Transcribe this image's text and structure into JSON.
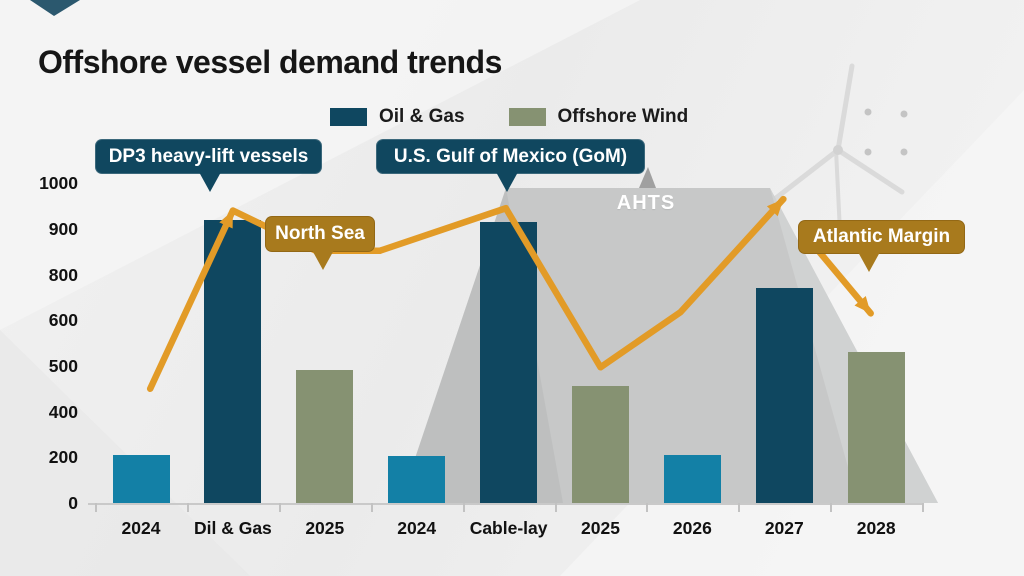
{
  "slide": {
    "title": "Offshore vessel demand trends"
  },
  "palette": {
    "navy": "#0f4760",
    "teal": "#1380a6",
    "olive": "#869272",
    "gold": "#a87a1d",
    "orange": "#e29b27"
  },
  "legend": {
    "items": [
      {
        "label": "Oil & Gas",
        "color": "navy"
      },
      {
        "label": "Offshore Wind",
        "color": "olive"
      }
    ]
  },
  "callouts": {
    "dp3": {
      "label": "DP3 heavy-lift vessels",
      "style": "navy"
    },
    "gom": {
      "label": "U.S. Gulf of Mexico (GoM)",
      "style": "navy"
    },
    "north_sea": {
      "label": "North Sea",
      "style": "gold"
    },
    "atlantic_margin": {
      "label": "Atlantic Margin",
      "style": "gold"
    }
  },
  "annotations": {
    "ahts_label": "AHTS"
  },
  "chart_data": {
    "type": "bar",
    "title": "Offshore vessel demand trends",
    "xlabel": "",
    "ylabel": "",
    "grid": false,
    "legend_position": "top",
    "y_ticks": [
      0,
      200,
      400,
      500,
      600,
      800,
      900,
      1000
    ],
    "categories": [
      "2024",
      "Dil & Gas",
      "2025",
      "2024",
      "Cable-lay",
      "2025",
      "2026",
      "2027",
      "2028"
    ],
    "bars": [
      {
        "label": "2024",
        "value": 210,
        "color": "teal",
        "series": ""
      },
      {
        "label": "Dil & Gas",
        "value": 920,
        "color": "navy",
        "series": "Oil & Gas"
      },
      {
        "label": "2025",
        "value": 490,
        "color": "olive",
        "series": "Offshore Wind"
      },
      {
        "label": "2024",
        "value": 205,
        "color": "teal",
        "series": ""
      },
      {
        "label": "Cable-lay",
        "value": 915,
        "color": "navy",
        "series": "Oil & Gas"
      },
      {
        "label": "2025",
        "value": 455,
        "color": "olive",
        "series": "Offshore Wind"
      },
      {
        "label": "2026",
        "value": 210,
        "color": "teal",
        "series": ""
      },
      {
        "label": "2027",
        "value": 740,
        "color": "navy",
        "series": "Oil & Gas"
      },
      {
        "label": "2028",
        "value": 530,
        "color": "olive",
        "series": "Offshore Wind"
      }
    ],
    "trend_line": {
      "color": "orange",
      "segments": [
        {
          "points": [
            [
              0.1,
              450
            ],
            [
              1.0,
              940
            ],
            [
              1.9,
              852
            ],
            [
              2.6,
              852
            ],
            [
              3.97,
              945
            ],
            [
              5.0,
              497
            ],
            [
              5.87,
              635
            ],
            [
              6.99,
              965
            ]
          ],
          "arrows": [
            1,
            7
          ]
        },
        {
          "points": [
            [
              7.2,
              893
            ],
            [
              7.94,
              630
            ]
          ],
          "arrows": [
            1
          ]
        }
      ]
    }
  }
}
